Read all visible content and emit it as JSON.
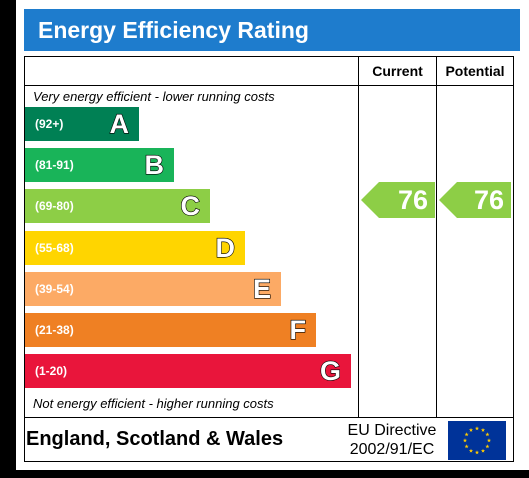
{
  "title": "Energy Efficiency Rating",
  "columns": {
    "current": "Current",
    "potential": "Potential"
  },
  "top_caption": "Very energy efficient - lower running costs",
  "bottom_caption": "Not energy efficient - higher running costs",
  "bands": [
    {
      "range": "(92+)",
      "letter": "A",
      "color": "#008054"
    },
    {
      "range": "(81-91)",
      "letter": "B",
      "color": "#19b459"
    },
    {
      "range": "(69-80)",
      "letter": "C",
      "color": "#8dce46"
    },
    {
      "range": "(55-68)",
      "letter": "D",
      "color": "#ffd500"
    },
    {
      "range": "(39-54)",
      "letter": "E",
      "color": "#fcaa65"
    },
    {
      "range": "(21-38)",
      "letter": "F",
      "color": "#ef8023"
    },
    {
      "range": "(1-20)",
      "letter": "G",
      "color": "#e9153b"
    }
  ],
  "current": {
    "value": "76",
    "color": "#8dce46"
  },
  "potential": {
    "value": "76",
    "color": "#8dce46"
  },
  "footer": {
    "region": "England, Scotland & Wales",
    "directive_line1": "EU Directive",
    "directive_line2": "2002/91/EC",
    "flag_icon": "eu-flag-icon"
  }
}
